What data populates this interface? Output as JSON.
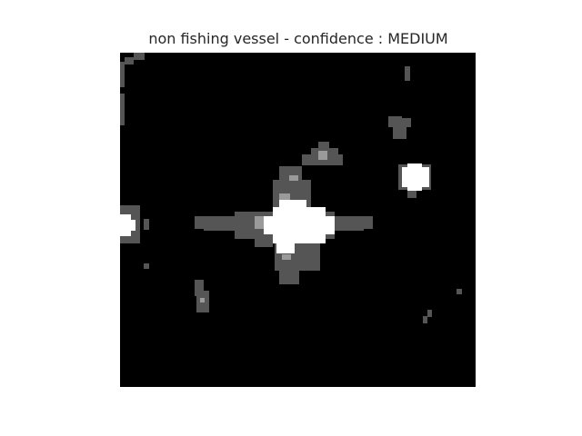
{
  "title": "non fishing vessel - confidence : MEDIUM",
  "image": {
    "description_type": "SAR radar chip",
    "colors": {
      "background": "#000000",
      "low_return": "#555555",
      "mid_return": "#9a9a9a",
      "high_return": "#ffffff"
    }
  }
}
